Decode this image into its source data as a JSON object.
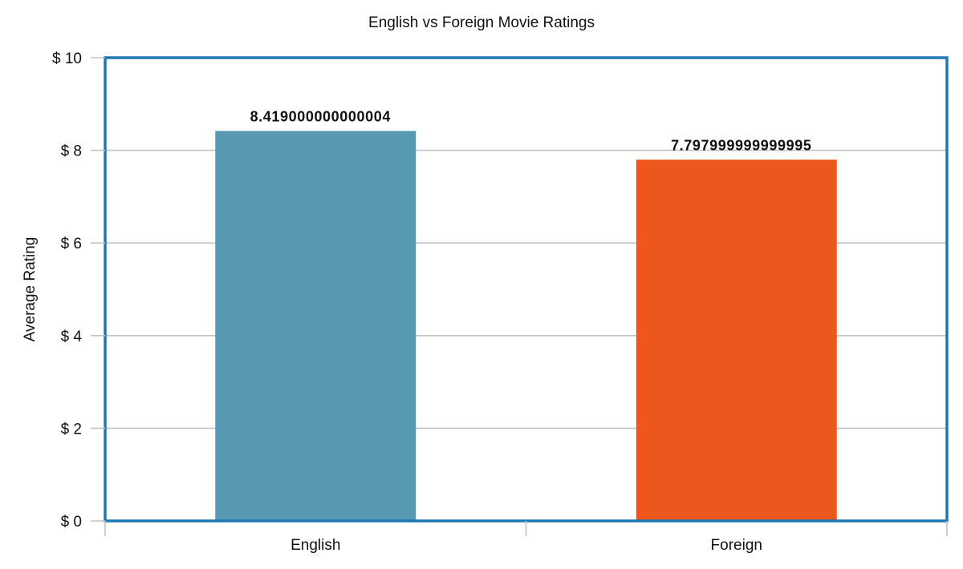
{
  "chart_data": {
    "type": "bar",
    "title": "English vs Foreign Movie Ratings",
    "xlabel": "",
    "ylabel": "Average Rating",
    "categories": [
      "English",
      "Foreign"
    ],
    "values": [
      8.419000000000004,
      7.797999999999995
    ],
    "data_labels": [
      "8.419000000000004",
      "7.797999999999995"
    ],
    "ylim": [
      0,
      10
    ],
    "yticks": [
      0,
      2,
      4,
      6,
      8,
      10
    ],
    "ytick_labels": [
      "$ 0",
      "$ 2",
      "$ 4",
      "$ 6",
      "$ 8",
      "$ 10"
    ],
    "bar_colors": [
      "#5799b3",
      "#ec571d"
    ],
    "grid": true,
    "frame_color": "#1f77b4",
    "grid_color": "#c0c4c8",
    "legend": "none"
  }
}
